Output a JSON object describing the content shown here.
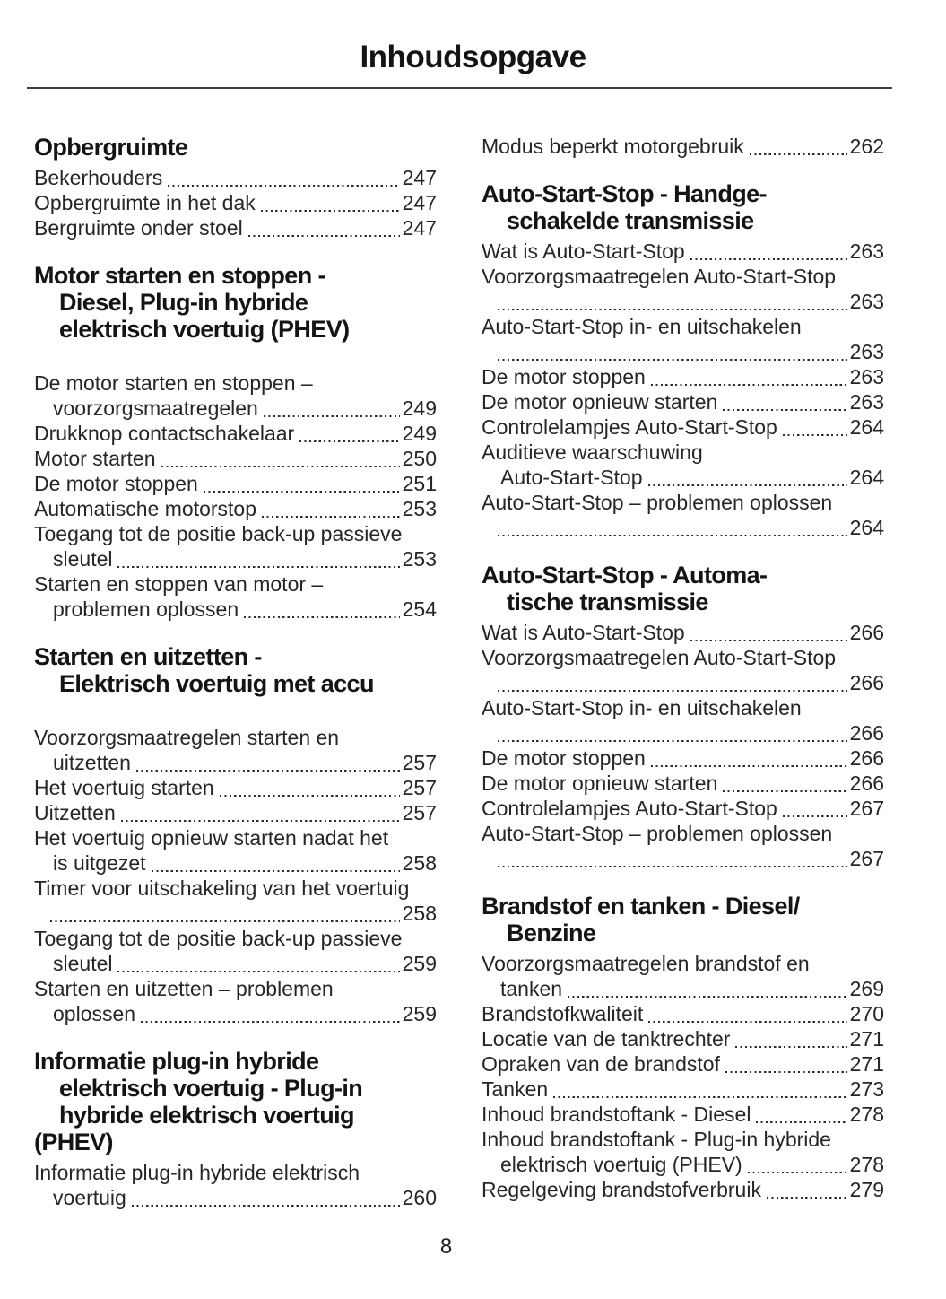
{
  "page": {
    "title": "Inhoudsopgave",
    "page_number": "8"
  },
  "colors": {
    "text": "#282525",
    "heading": "#151313",
    "rule": "#413d3d"
  },
  "columns": {
    "left": [
      {
        "heading_lines": [
          {
            "text": "Opbergruimte",
            "indent": false
          }
        ],
        "gap_after_heading": false,
        "entries": [
          {
            "lines": [
              "Bekerhouders"
            ],
            "page": "247"
          },
          {
            "lines": [
              "Opbergruimte in het dak"
            ],
            "page": "247"
          },
          {
            "lines": [
              "Bergruimte onder stoel"
            ],
            "page": "247"
          }
        ]
      },
      {
        "heading_lines": [
          {
            "text": "Motor starten en stoppen -",
            "indent": false
          },
          {
            "text": "Diesel, Plug-in hybride",
            "indent": true
          },
          {
            "text": "elektrisch voertuig (PHEV)",
            "indent": true
          }
        ],
        "gap_after_heading": true,
        "entries": [
          {
            "lines": [
              "De motor starten en stoppen –",
              "voorzorgsmaatregelen"
            ],
            "page": "249"
          },
          {
            "lines": [
              "Drukknop contactschakelaar"
            ],
            "page": "249"
          },
          {
            "lines": [
              "Motor starten"
            ],
            "page": "250"
          },
          {
            "lines": [
              "De motor stoppen"
            ],
            "page": "251"
          },
          {
            "lines": [
              "Automatische motorstop"
            ],
            "page": "253"
          },
          {
            "lines": [
              "Toegang tot de positie back-up passieve",
              "sleutel"
            ],
            "page": "253"
          },
          {
            "lines": [
              "Starten en stoppen van motor –",
              "problemen oplossen"
            ],
            "page": "254"
          }
        ]
      },
      {
        "heading_lines": [
          {
            "text": "Starten en uitzetten -",
            "indent": false
          },
          {
            "text": "Elektrisch voertuig met accu",
            "indent": true
          }
        ],
        "gap_after_heading": true,
        "entries": [
          {
            "lines": [
              "Voorzorgsmaatregelen starten en",
              "uitzetten"
            ],
            "page": "257"
          },
          {
            "lines": [
              "Het voertuig starten"
            ],
            "page": "257"
          },
          {
            "lines": [
              "Uitzetten"
            ],
            "page": "257"
          },
          {
            "lines": [
              "Het voertuig opnieuw starten nadat het",
              "is uitgezet"
            ],
            "page": "258"
          },
          {
            "lines": [
              "Timer voor uitschakeling van het voertuig",
              ""
            ],
            "page": "258"
          },
          {
            "lines": [
              "Toegang tot de positie back-up passieve",
              "sleutel"
            ],
            "page": "259"
          },
          {
            "lines": [
              "Starten en uitzetten – problemen",
              "oplossen"
            ],
            "page": "259"
          }
        ]
      },
      {
        "heading_lines": [
          {
            "text": "Informatie plug-in hybride",
            "indent": false
          },
          {
            "text": "elektrisch voertuig - Plug-in",
            "indent": true
          },
          {
            "text": "hybride elektrisch voertuig",
            "indent": true
          },
          {
            "text": "(PHEV)",
            "indent": false
          }
        ],
        "gap_after_heading": false,
        "entries": [
          {
            "lines": [
              "Informatie plug-in hybride elektrisch",
              "voertuig"
            ],
            "page": "260"
          }
        ]
      }
    ],
    "right": [
      {
        "heading_lines": [],
        "gap_after_heading": false,
        "entries": [
          {
            "lines": [
              "Modus beperkt motorgebruik"
            ],
            "page": "262"
          }
        ]
      },
      {
        "heading_lines": [
          {
            "text": "Auto-Start-Stop - Handge-",
            "indent": false
          },
          {
            "text": "schakelde transmissie",
            "indent": true
          }
        ],
        "gap_after_heading": false,
        "entries": [
          {
            "lines": [
              "Wat is Auto-Start-Stop"
            ],
            "page": "263"
          },
          {
            "lines": [
              "Voorzorgsmaatregelen Auto-Start-Stop",
              ""
            ],
            "page": "263"
          },
          {
            "lines": [
              "Auto-Start-Stop in- en uitschakelen",
              ""
            ],
            "page": "263"
          },
          {
            "lines": [
              "De motor stoppen"
            ],
            "page": "263"
          },
          {
            "lines": [
              "De motor opnieuw starten"
            ],
            "page": "263"
          },
          {
            "lines": [
              "Controlelampjes Auto-Start-Stop"
            ],
            "page": "264"
          },
          {
            "lines": [
              "Auditieve waarschuwing",
              "Auto-Start-Stop"
            ],
            "page": "264"
          },
          {
            "lines": [
              "Auto-Start-Stop – problemen oplossen",
              ""
            ],
            "page": "264"
          }
        ]
      },
      {
        "heading_lines": [
          {
            "text": "Auto-Start-Stop - Automa-",
            "indent": false
          },
          {
            "text": "tische transmissie",
            "indent": true
          }
        ],
        "gap_after_heading": false,
        "entries": [
          {
            "lines": [
              "Wat is Auto-Start-Stop"
            ],
            "page": "266"
          },
          {
            "lines": [
              "Voorzorgsmaatregelen Auto-Start-Stop",
              ""
            ],
            "page": "266"
          },
          {
            "lines": [
              "Auto-Start-Stop in- en uitschakelen",
              ""
            ],
            "page": "266"
          },
          {
            "lines": [
              "De motor stoppen"
            ],
            "page": "266"
          },
          {
            "lines": [
              "De motor opnieuw starten"
            ],
            "page": "266"
          },
          {
            "lines": [
              "Controlelampjes Auto-Start-Stop"
            ],
            "page": "267"
          },
          {
            "lines": [
              "Auto-Start-Stop – problemen oplossen",
              ""
            ],
            "page": "267"
          }
        ]
      },
      {
        "heading_lines": [
          {
            "text": "Brandstof en tanken - Diesel/",
            "indent": false
          },
          {
            "text": "Benzine",
            "indent": true
          }
        ],
        "gap_after_heading": false,
        "entries": [
          {
            "lines": [
              "Voorzorgsmaatregelen brandstof en",
              "tanken"
            ],
            "page": "269"
          },
          {
            "lines": [
              "Brandstofkwaliteit"
            ],
            "page": "270"
          },
          {
            "lines": [
              "Locatie van de tanktrechter"
            ],
            "page": "271"
          },
          {
            "lines": [
              "Opraken van de brandstof"
            ],
            "page": "271"
          },
          {
            "lines": [
              "Tanken"
            ],
            "page": "273"
          },
          {
            "lines": [
              "Inhoud brandstoftank - Diesel"
            ],
            "page": "278"
          },
          {
            "lines": [
              "Inhoud brandstoftank - Plug-in hybride",
              "elektrisch voertuig (PHEV)"
            ],
            "page": "278"
          },
          {
            "lines": [
              "Regelgeving brandstofverbruik"
            ],
            "page": "279"
          }
        ]
      }
    ]
  }
}
